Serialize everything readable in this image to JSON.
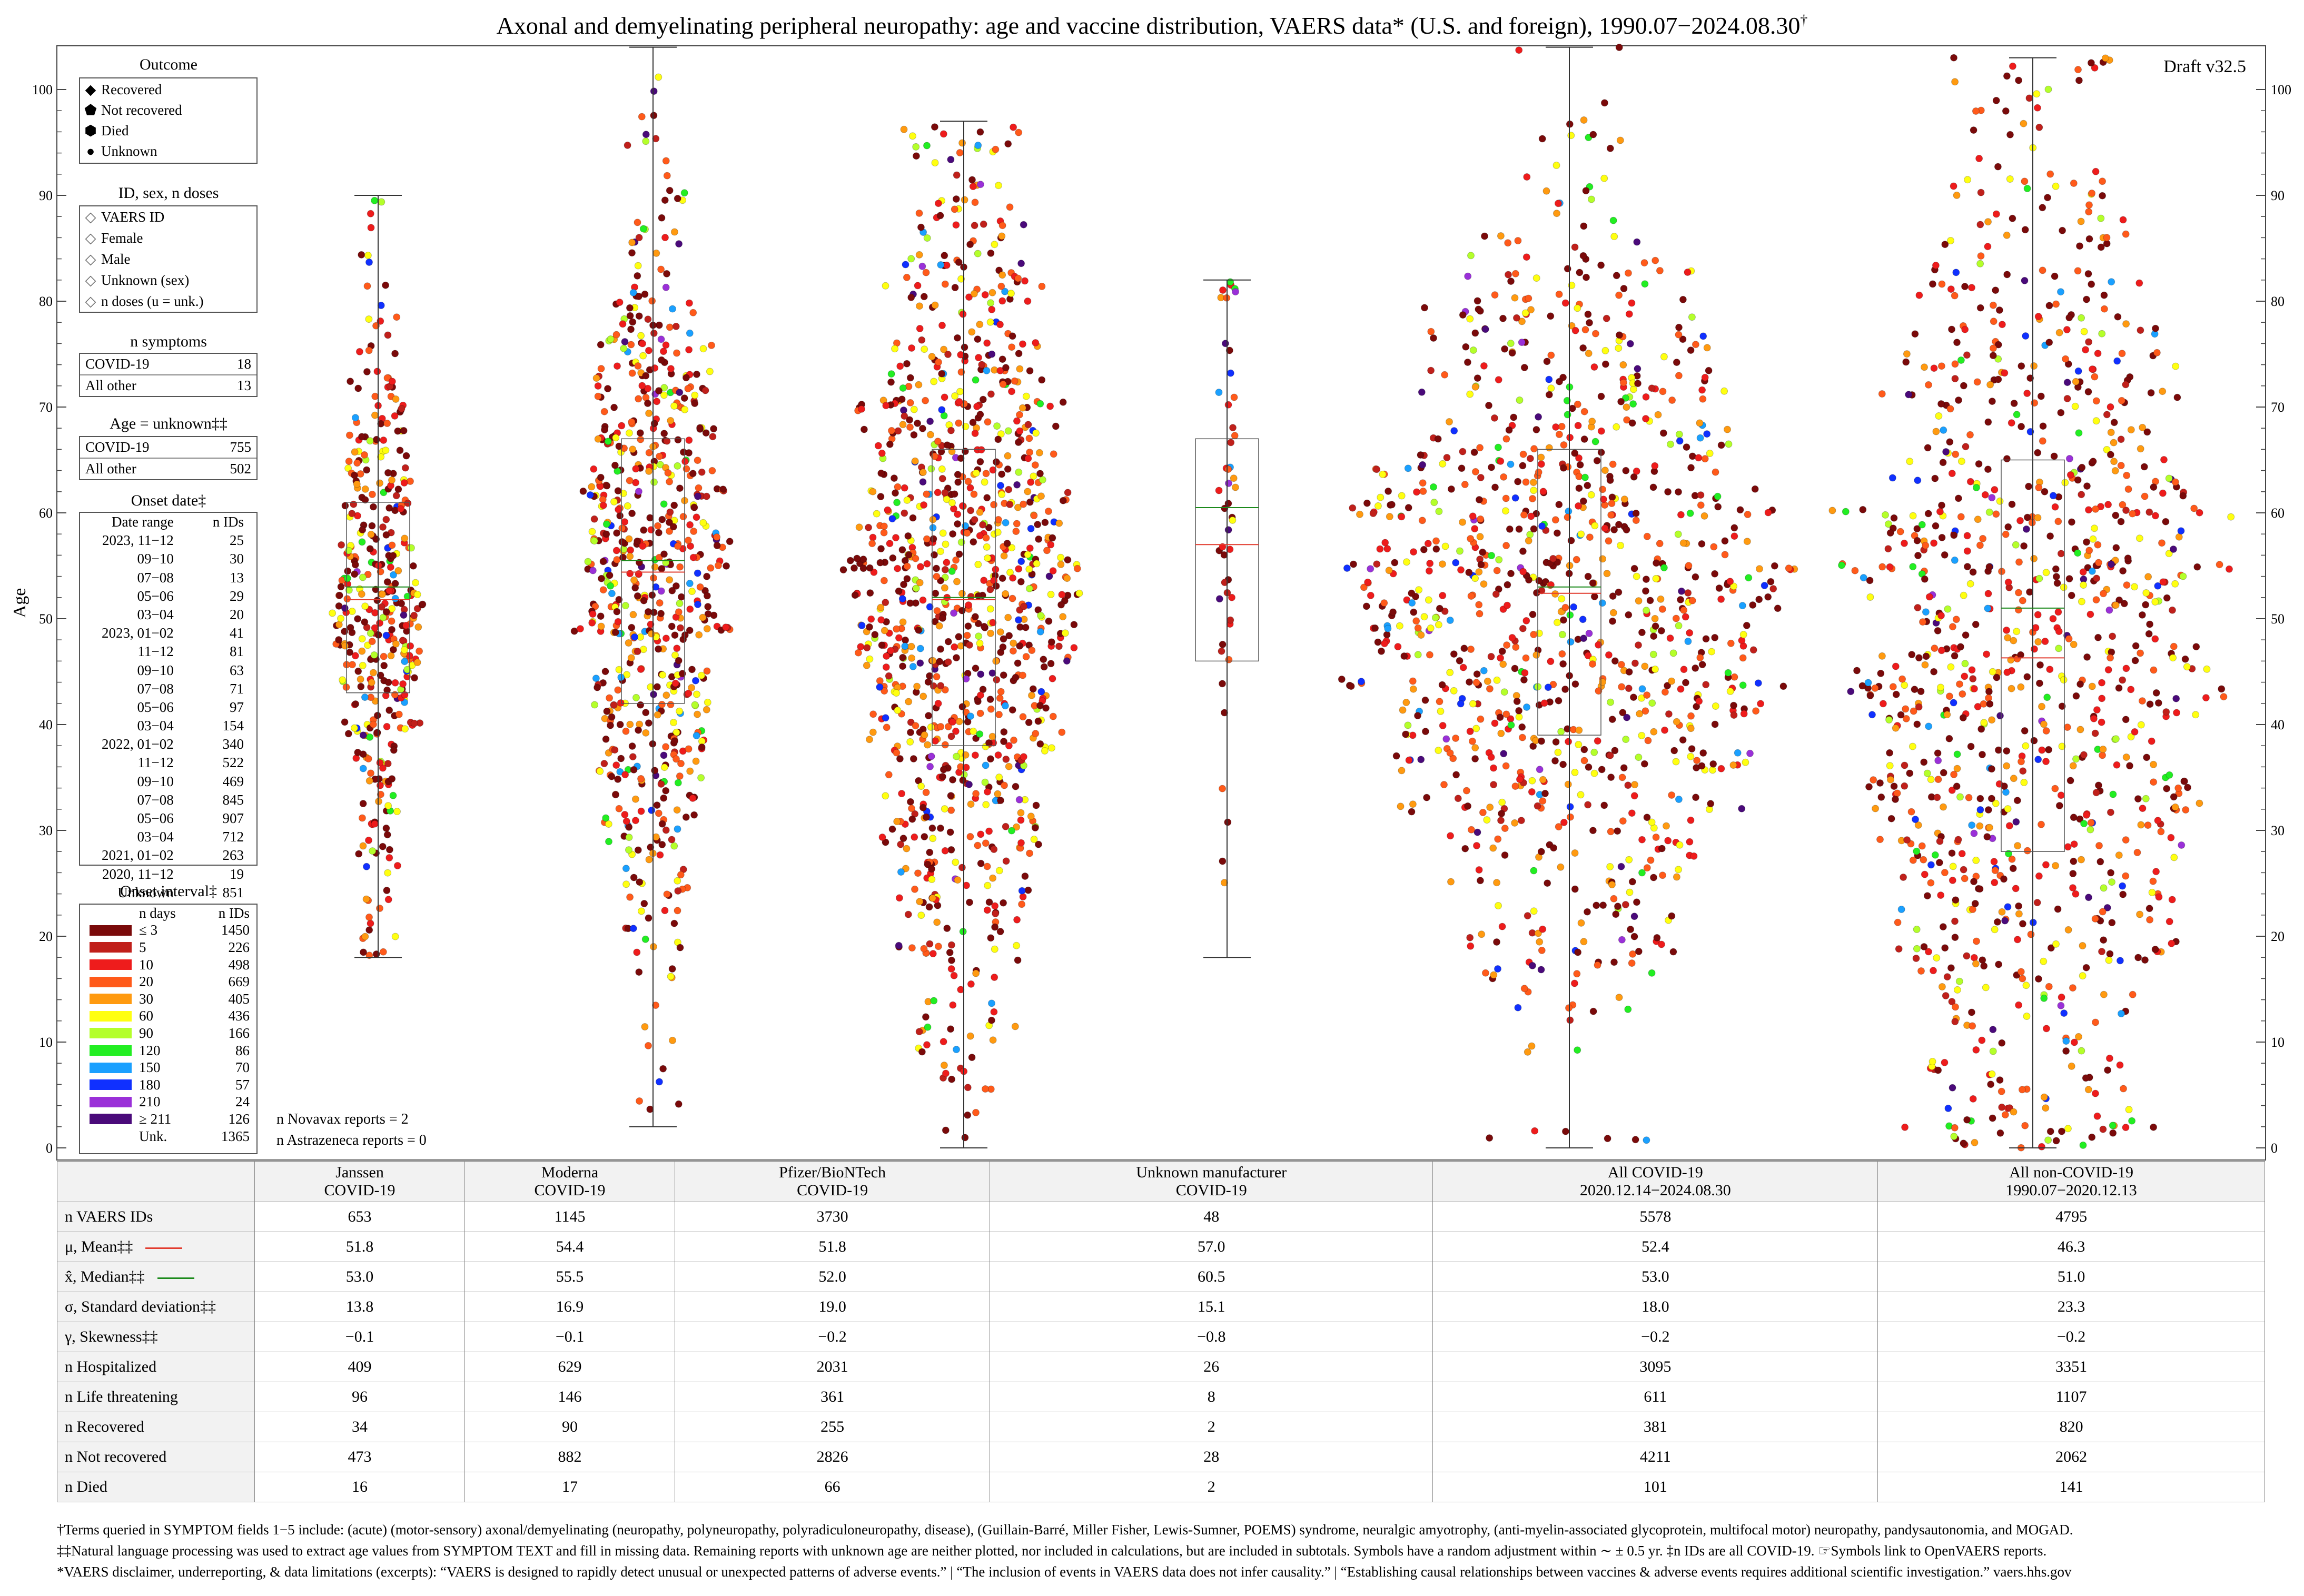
{
  "title": "Axonal and demyelinating peripheral neuropathy: age and vaccine distribution, VAERS data* (U.S. and foreign), 1990.07−2024.08.30",
  "title_mark": "†",
  "draft": "Draft v32.5",
  "y_axis_label": "Age",
  "legend": {
    "outcome": {
      "title": "Outcome",
      "items": [
        {
          "symbol": "◆",
          "label": "Recovered"
        },
        {
          "symbol": "⬟",
          "label": "Not recovered"
        },
        {
          "symbol": "⬢",
          "label": "Died"
        },
        {
          "symbol": "●",
          "label": "Unknown"
        }
      ]
    },
    "id_sex": {
      "title": "ID, sex, n doses",
      "items": [
        {
          "symbol": "◇",
          "label": "VAERS ID"
        },
        {
          "symbol": "◇",
          "label": "Female"
        },
        {
          "symbol": "◇",
          "label": "Male"
        },
        {
          "symbol": "◇",
          "label": "Unknown (sex)"
        },
        {
          "symbol": "◇",
          "label": "n doses (u = unk.)"
        }
      ]
    },
    "n_symptoms": {
      "title": "n symptoms",
      "rows": [
        {
          "label": "COVID-19",
          "value": "18"
        },
        {
          "label": "All other",
          "value": "13"
        }
      ]
    },
    "age_unknown": {
      "title": "Age = unknown‡‡",
      "rows": [
        {
          "label": "COVID-19",
          "value": "755"
        },
        {
          "label": "All other",
          "value": "502"
        }
      ]
    },
    "onset_date": {
      "title": "Onset date‡",
      "header": {
        "range": "Date range",
        "ids": "n IDs"
      },
      "rows": [
        {
          "range": "2023, 11−12",
          "ids": "25"
        },
        {
          "range": "09−10",
          "ids": "30"
        },
        {
          "range": "07−08",
          "ids": "13"
        },
        {
          "range": "05−06",
          "ids": "29"
        },
        {
          "range": "03−04",
          "ids": "20"
        },
        {
          "range": "2023, 01−02",
          "ids": "41"
        },
        {
          "range": "11−12",
          "ids": "81"
        },
        {
          "range": "09−10",
          "ids": "63"
        },
        {
          "range": "07−08",
          "ids": "71"
        },
        {
          "range": "05−06",
          "ids": "97"
        },
        {
          "range": "03−04",
          "ids": "154"
        },
        {
          "range": "2022, 01−02",
          "ids": "340"
        },
        {
          "range": "11−12",
          "ids": "522"
        },
        {
          "range": "09−10",
          "ids": "469"
        },
        {
          "range": "07−08",
          "ids": "845"
        },
        {
          "range": "05−06",
          "ids": "907"
        },
        {
          "range": "03−04",
          "ids": "712"
        },
        {
          "range": "2021, 01−02",
          "ids": "263"
        },
        {
          "range": "2020, 11−12",
          "ids": "19"
        },
        {
          "range": "Unknown",
          "ids": "851"
        }
      ]
    },
    "onset_interval": {
      "title": "Onset interval‡",
      "header": {
        "days": "n days",
        "ids": "n IDs"
      },
      "rows": [
        {
          "label": "≤ 3",
          "ids": "1450",
          "color": "#7a0a0a"
        },
        {
          "label": "5",
          "ids": "226",
          "color": "#c0201b"
        },
        {
          "label": "10",
          "ids": "498",
          "color": "#ee1c1c"
        },
        {
          "label": "20",
          "ids": "669",
          "color": "#ff5a1a"
        },
        {
          "label": "30",
          "ids": "405",
          "color": "#ff9a10"
        },
        {
          "label": "60",
          "ids": "436",
          "color": "#ffff10"
        },
        {
          "label": "90",
          "ids": "166",
          "color": "#b4ff2a"
        },
        {
          "label": "120",
          "ids": "86",
          "color": "#22ee22"
        },
        {
          "label": "150",
          "ids": "70",
          "color": "#1aa0ff"
        },
        {
          "label": "180",
          "ids": "57",
          "color": "#1030ff"
        },
        {
          "label": "210",
          "ids": "24",
          "color": "#9a30d8"
        },
        {
          "label": "≥ 211",
          "ids": "126",
          "color": "#4a0a7a"
        },
        {
          "label": "Unk.",
          "ids": "1365",
          "color": "#ffffff"
        }
      ]
    }
  },
  "notes": {
    "novavax": "n Novavax reports = 2",
    "astrazeneca": "n Astrazeneca reports = 0"
  },
  "chart_data": {
    "type": "scatter",
    "subtype": "beeswarm",
    "ylabel": "Age",
    "ylim": [
      0,
      100
    ],
    "yticks": [
      0,
      10,
      20,
      30,
      40,
      50,
      60,
      70,
      80,
      90,
      100
    ],
    "categories": [
      "Janssen COVID-19",
      "Moderna COVID-19",
      "Pfizer/BioNTech COVID-19",
      "Unknown manufacturer COVID-19",
      "All COVID-19 2020.12.14−2024.08.30",
      "All non-COVID-19 1990.07−2020.12.13"
    ],
    "series": [
      {
        "name": "Janssen COVID-19",
        "n": 653,
        "mean": 51.8,
        "median": 53.0,
        "sd": 13.8,
        "min": 18,
        "max": 90,
        "q1": 43,
        "q3": 61
      },
      {
        "name": "Moderna COVID-19",
        "n": 1145,
        "mean": 54.4,
        "median": 55.5,
        "sd": 16.9,
        "min": 2,
        "max": 104,
        "q1": 42,
        "q3": 67
      },
      {
        "name": "Pfizer/BioNTech COVID-19",
        "n": 3730,
        "mean": 51.8,
        "median": 52.0,
        "sd": 19.0,
        "min": 0,
        "max": 97,
        "q1": 38,
        "q3": 66
      },
      {
        "name": "Unknown manufacturer COVID-19",
        "n": 48,
        "mean": 57.0,
        "median": 60.5,
        "sd": 15.1,
        "min": 18,
        "max": 82,
        "q1": 46,
        "q3": 67
      },
      {
        "name": "All COVID-19",
        "n": 5578,
        "mean": 52.4,
        "median": 53.0,
        "sd": 18.0,
        "min": 0,
        "max": 104,
        "q1": 39,
        "q3": 66
      },
      {
        "name": "All non-COVID-19",
        "n": 4795,
        "mean": 46.3,
        "median": 51.0,
        "sd": 23.3,
        "min": 0,
        "max": 103,
        "q1": 28,
        "q3": 65
      }
    ],
    "color_key": "onset interval (days)"
  },
  "table": {
    "headers": [
      "",
      "Janssen\nCOVID-19",
      "Moderna\nCOVID-19",
      "Pfizer/BioNTech\nCOVID-19",
      "Unknown manufacturer\nCOVID-19",
      "All COVID-19\n2020.12.14−2024.08.30",
      "All non-COVID-19\n1990.07−2020.12.13"
    ],
    "rows": [
      {
        "label": "n VAERS IDs",
        "values": [
          "653",
          "1145",
          "3730",
          "48",
          "5578",
          "4795"
        ]
      },
      {
        "label": "μ, Mean‡‡",
        "values": [
          "51.8",
          "54.4",
          "51.8",
          "57.0",
          "52.4",
          "46.3"
        ],
        "marker": "mean"
      },
      {
        "label": "x̂, Median‡‡",
        "values": [
          "53.0",
          "55.5",
          "52.0",
          "60.5",
          "53.0",
          "51.0"
        ],
        "marker": "median"
      },
      {
        "label": "σ, Standard deviation‡‡",
        "values": [
          "13.8",
          "16.9",
          "19.0",
          "15.1",
          "18.0",
          "23.3"
        ]
      },
      {
        "label": "γ, Skewness‡‡",
        "values": [
          "−0.1",
          "−0.1",
          "−0.2",
          "−0.8",
          "−0.2",
          "−0.2"
        ]
      },
      {
        "label": "n Hospitalized",
        "values": [
          "409",
          "629",
          "2031",
          "26",
          "3095",
          "3351"
        ]
      },
      {
        "label": "n Life threatening",
        "values": [
          "96",
          "146",
          "361",
          "8",
          "611",
          "1107"
        ]
      },
      {
        "label": "n Recovered",
        "values": [
          "34",
          "90",
          "255",
          "2",
          "381",
          "820"
        ]
      },
      {
        "label": "n Not recovered",
        "values": [
          "473",
          "882",
          "2826",
          "28",
          "4211",
          "2062"
        ]
      },
      {
        "label": "n Died",
        "values": [
          "16",
          "17",
          "66",
          "2",
          "101",
          "141"
        ]
      }
    ]
  },
  "footnotes": [
    "†Terms queried in SYMPTOM fields 1−5 include: (acute) (motor-sensory) axonal/demyelinating (neuropathy, polyneuropathy, polyradiculoneuropathy, disease), (Guillain-Barré, Miller Fisher, Lewis-Sumner, POEMS) syndrome, neuralgic amyotrophy, (anti-myelin-associated glycoprotein, multifocal motor) neuropathy, pandysautonomia, and MOGAD.",
    "‡‡Natural language processing was used to extract age values from SYMPTOM TEXT and fill in missing data. Remaining reports with unknown age are neither plotted, nor included in calculations, but are included in subtotals. Symbols have a random adjustment within ∼ ± 0.5 yr.  ‡n IDs are all COVID-19.          ☞Symbols link to OpenVAERS reports.",
    "*VAERS disclaimer, underreporting, & data limitations (excerpts): “VAERS is designed to rapidly detect unusual or unexpected patterns of adverse events.” | “The inclusion of events in VAERS data does not infer causality.” | “Establishing causal relationships between vaccines & adverse events requires additional scientific investigation.”  vaers.hhs.gov"
  ]
}
